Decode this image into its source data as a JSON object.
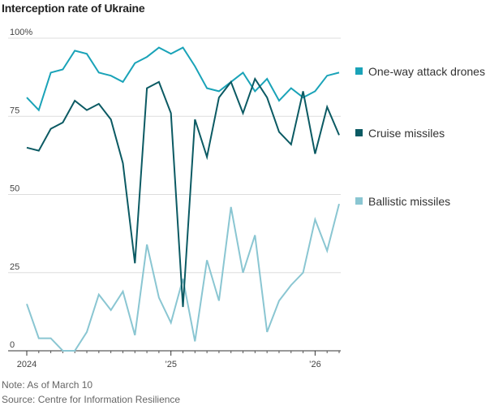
{
  "chart_data": {
    "type": "line",
    "title": "Interception rate of Ukraine",
    "xlabel": "",
    "ylabel": "",
    "ylim": [
      0,
      100
    ],
    "yticks": [
      {
        "value": 0,
        "label": "0"
      },
      {
        "value": 25,
        "label": "25"
      },
      {
        "value": 50,
        "label": "50"
      },
      {
        "value": 75,
        "label": "75"
      },
      {
        "value": 100,
        "label": "100%"
      }
    ],
    "xticks": [
      {
        "index": 0,
        "label": "2024"
      },
      {
        "index": 12,
        "label": "’25"
      },
      {
        "index": 24,
        "label": "’26"
      }
    ],
    "x": [
      "Jan 2024",
      "Feb 2024",
      "Mar 2024",
      "Apr 2024",
      "May 2024",
      "Jun 2024",
      "Jul 2024",
      "Aug 2024",
      "Sep 2024",
      "Oct 2024",
      "Nov 2024",
      "Dec 2024",
      "Jan 2025",
      "Feb 2025",
      "Mar 2025",
      "Apr 2025",
      "May 2025",
      "Jun 2025",
      "Jul 2025",
      "Aug 2025",
      "Sep 2025",
      "Oct 2025",
      "Nov 2025",
      "Dec 2025",
      "Jan 2026",
      "Feb 2026",
      "Mar 2026"
    ],
    "series": [
      {
        "name": "One-way attack drones",
        "color": "#1aa3b8",
        "values": [
          81,
          77,
          89,
          90,
          96,
          95,
          89,
          88,
          86,
          92,
          94,
          97,
          95,
          97,
          91,
          84,
          83,
          86,
          89,
          83,
          87,
          80,
          84,
          81,
          83,
          88,
          89
        ]
      },
      {
        "name": "Cruise missiles",
        "color": "#0b5a63",
        "values": [
          65,
          64,
          71,
          73,
          80,
          77,
          79,
          74,
          60,
          28,
          84,
          86,
          76,
          14,
          74,
          62,
          81,
          86,
          76,
          87,
          81,
          70,
          66,
          83,
          63,
          78,
          69
        ]
      },
      {
        "name": "Ballistic missiles",
        "color": "#8ac6d2",
        "values": [
          15,
          4,
          4,
          0,
          0,
          6,
          18,
          13,
          19,
          5,
          34,
          17,
          9,
          23,
          3,
          29,
          16,
          46,
          25,
          37,
          6,
          16,
          21,
          25,
          42,
          32,
          47
        ]
      }
    ]
  },
  "note": "Note: As of March 10",
  "source": "Source: Centre for Information Resilience"
}
